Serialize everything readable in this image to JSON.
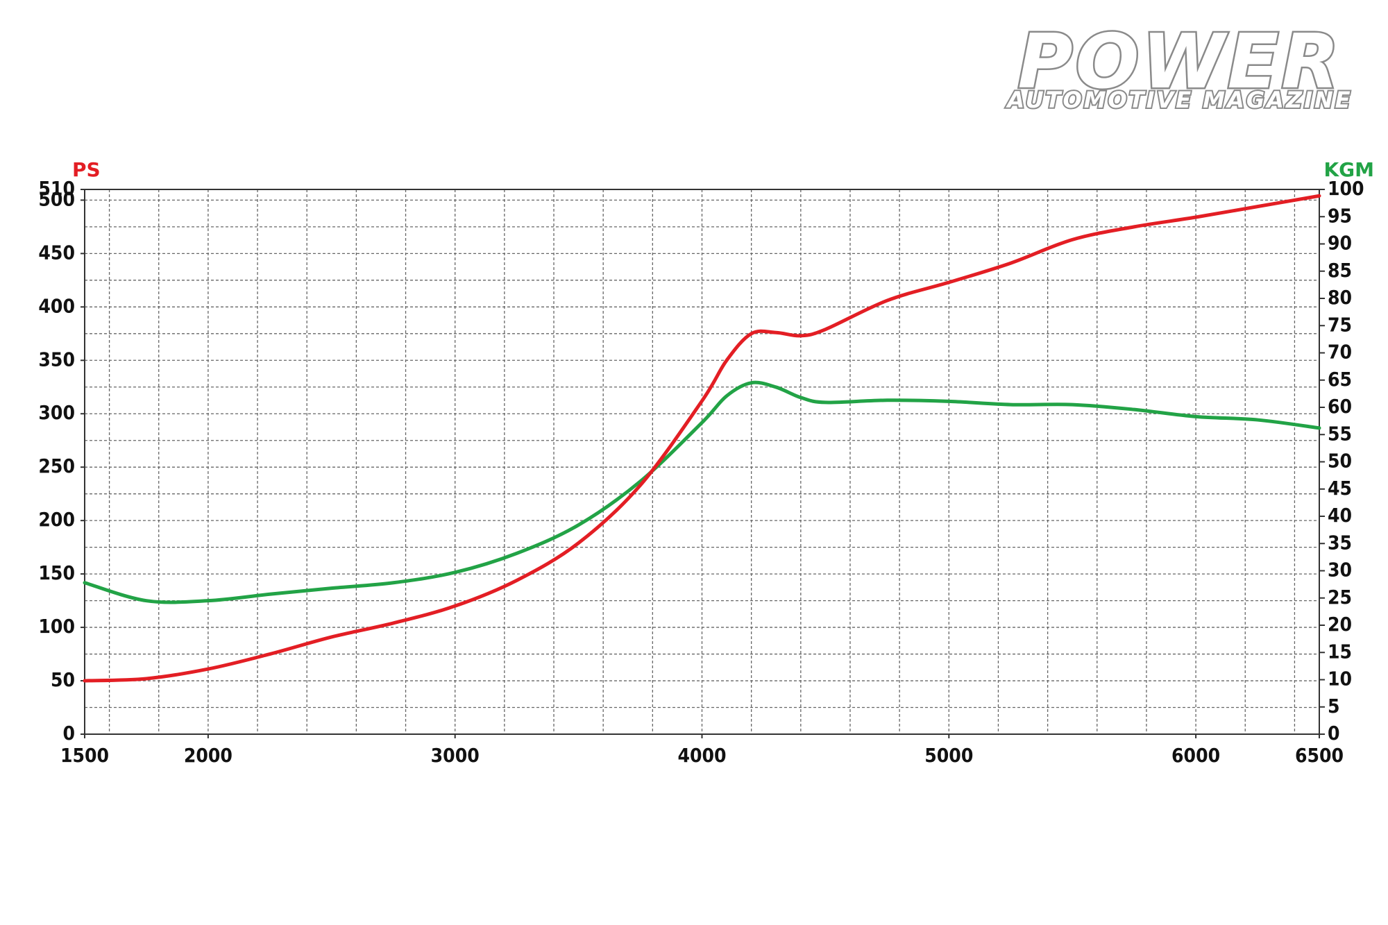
{
  "brand": {
    "title": "POWER",
    "subtitle": "AUTOMOTIVE MAGAZINE"
  },
  "chart_data": {
    "type": "line",
    "y_label": "PS",
    "y2_label": "KGM",
    "x": [
      1500,
      1750,
      2000,
      2250,
      2500,
      2750,
      3000,
      3250,
      3500,
      3750,
      4000,
      4100,
      4200,
      4300,
      4400,
      4500,
      4750,
      5000,
      5250,
      5500,
      5750,
      6000,
      6250,
      6500
    ],
    "series": [
      {
        "color": "#e31e24",
        "axis": "y",
        "values": [
          50,
          52,
          61,
          75,
          91,
          104,
          120,
          144,
          179,
          233,
          312,
          350,
          375,
          376,
          373,
          379,
          406,
          423,
          441,
          463,
          475,
          484,
          494,
          504
        ]
      },
      {
        "color": "#22a346",
        "axis": "y2",
        "values": [
          27.8,
          24.5,
          24.5,
          25.7,
          26.8,
          27.8,
          29.7,
          33.2,
          38.4,
          46.4,
          57.2,
          62.1,
          64.5,
          63.7,
          61.8,
          60.9,
          61.3,
          61.1,
          60.5,
          60.5,
          59.6,
          58.3,
          57.7,
          56.2
        ]
      }
    ],
    "xlim": [
      1500,
      6500
    ],
    "xticks": [
      1500,
      2000,
      3000,
      4000,
      5000,
      6000,
      6500
    ],
    "ylim": [
      0,
      510
    ],
    "yticks": [
      0,
      50,
      100,
      150,
      200,
      250,
      300,
      350,
      400,
      450,
      500,
      510
    ],
    "y2lim": [
      0,
      100
    ],
    "y2ticks": [
      0,
      5,
      10,
      15,
      20,
      25,
      30,
      35,
      40,
      45,
      50,
      55,
      60,
      65,
      70,
      75,
      80,
      85,
      90,
      95,
      100
    ],
    "xgrid": [
      1600,
      1800,
      2000,
      2200,
      2400,
      2600,
      2800,
      3000,
      3200,
      3400,
      3600,
      3800,
      4000,
      4200,
      4400,
      4600,
      4800,
      5000,
      5200,
      5400,
      5600,
      5800,
      6000,
      6200,
      6400
    ],
    "ygrid": [
      25,
      50,
      75,
      100,
      125,
      150,
      175,
      200,
      225,
      250,
      275,
      300,
      325,
      350,
      375,
      400,
      425,
      450,
      475,
      500
    ],
    "grid": true
  }
}
